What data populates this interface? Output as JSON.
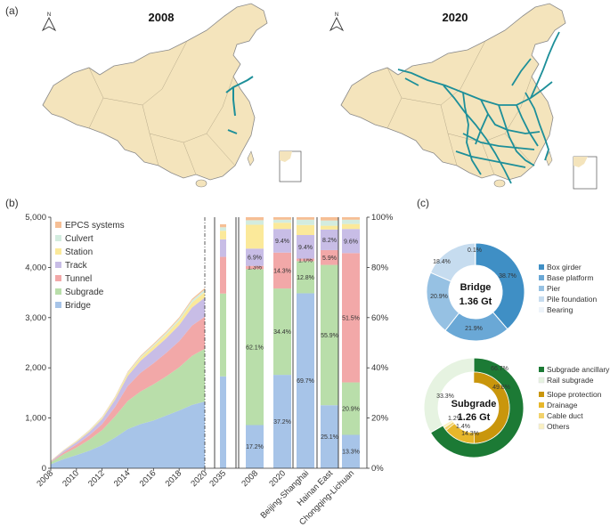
{
  "panel_labels": {
    "a": "(a)",
    "b": "(b)",
    "c": "(c)"
  },
  "maps": [
    {
      "title": "2008",
      "north": "N"
    },
    {
      "title": "2020",
      "north": "N"
    }
  ],
  "colors": {
    "land": "#f4e4bc",
    "border": "#9a9a9a",
    "rail": "#1d8f99",
    "bridge": "#a7c4e8",
    "subgrade": "#b9deaa",
    "tunnel": "#f2a8a8",
    "track": "#c8bde6",
    "station": "#fbe99a",
    "culvert": "#d3ecdf",
    "epcs": "#f6bf95"
  },
  "chart_data": [
    {
      "type": "area",
      "id": "cumulative-stacked-area",
      "x": [
        2008,
        2009,
        2010,
        2011,
        2012,
        2013,
        2014,
        2015,
        2016,
        2017,
        2018,
        2019,
        2020
      ],
      "xticks": [
        "2008",
        "2010",
        "2012",
        "2014",
        "2016",
        "2018",
        "2020"
      ],
      "extra_xtick": "2035",
      "ylim": [
        0,
        5000
      ],
      "yticks_left": [
        "0",
        "1,000",
        "2,000",
        "3,000",
        "4,000",
        "5,000"
      ],
      "yticks_right": [
        "0%",
        "20%",
        "40%",
        "60%",
        "80%",
        "100%"
      ],
      "legend": [
        "EPCS systems",
        "Culvert",
        "Station",
        "Track",
        "Tunnel",
        "Subgrade",
        "Bridge"
      ],
      "series": [
        {
          "name": "Bridge",
          "values": [
            80,
            180,
            260,
            350,
            460,
            610,
            780,
            880,
            950,
            1050,
            1150,
            1260,
            1330
          ]
        },
        {
          "name": "Subgrade",
          "values": [
            40,
            100,
            150,
            220,
            300,
            420,
            560,
            650,
            720,
            780,
            860,
            980,
            1050
          ]
        },
        {
          "name": "Tunnel",
          "values": [
            10,
            35,
            60,
            85,
            120,
            190,
            300,
            370,
            420,
            470,
            520,
            600,
            640
          ]
        },
        {
          "name": "Track",
          "values": [
            10,
            30,
            50,
            70,
            100,
            140,
            200,
            240,
            270,
            290,
            320,
            360,
            380
          ]
        },
        {
          "name": "Station",
          "values": [
            5,
            10,
            15,
            20,
            25,
            35,
            50,
            60,
            70,
            80,
            90,
            100,
            110
          ]
        },
        {
          "name": "Culvert",
          "values": [
            3,
            5,
            8,
            10,
            12,
            15,
            20,
            25,
            30,
            35,
            40,
            45,
            50
          ]
        },
        {
          "name": "EPCS systems",
          "values": [
            2,
            3,
            5,
            8,
            10,
            12,
            15,
            18,
            20,
            22,
            25,
            28,
            30
          ]
        }
      ]
    },
    {
      "type": "bar",
      "id": "projection-2035",
      "categories": [
        "2035"
      ],
      "series": [
        {
          "name": "Bridge",
          "values": [
            1830
          ]
        },
        {
          "name": "Subgrade",
          "values": [
            1650
          ]
        },
        {
          "name": "Tunnel",
          "values": [
            730
          ]
        },
        {
          "name": "Track",
          "values": [
            350
          ]
        },
        {
          "name": "Station",
          "values": [
            170
          ]
        },
        {
          "name": "Culvert",
          "values": [
            70
          ]
        },
        {
          "name": "EPCS systems",
          "values": [
            60
          ]
        }
      ]
    },
    {
      "type": "bar",
      "id": "share-stacked-100",
      "categories": [
        "2008",
        "2020",
        "Beijing-Shanghai",
        "Hainan East",
        "Chongqing-Lichuan"
      ],
      "ylim": [
        0,
        100
      ],
      "series": [
        {
          "name": "Bridge",
          "values": [
            17.2,
            37.2,
            69.7,
            25.1,
            13.3
          ],
          "labels": [
            "17.2%",
            "37.2%",
            "69.7%",
            "25.1%",
            "13.3%"
          ]
        },
        {
          "name": "Subgrade",
          "values": [
            62.1,
            34.4,
            12.8,
            55.9,
            20.9
          ],
          "labels": [
            "62.1%",
            "34.4%",
            "12.8%",
            "55.9%",
            "20.9%"
          ]
        },
        {
          "name": "Tunnel",
          "values": [
            1.3,
            14.3,
            1.0,
            5.9,
            51.5
          ],
          "labels": [
            "1.3%",
            "14.3%",
            "1.0%",
            "5.9%",
            "51.5%"
          ]
        },
        {
          "name": "Track",
          "values": [
            6.9,
            9.4,
            9.4,
            8.2,
            9.6
          ],
          "labels": [
            "6.9%",
            "9.4%",
            "9.4%",
            "8.2%",
            "9.6%"
          ]
        },
        {
          "name": "Station",
          "values": [
            9.5,
            2.5,
            4.0,
            1.5,
            2.0
          ],
          "labels": [
            "",
            "",
            "",
            "",
            ""
          ]
        },
        {
          "name": "Culvert",
          "values": [
            1.8,
            1.2,
            2.1,
            2.1,
            1.7
          ],
          "labels": [
            "",
            "",
            "",
            "",
            ""
          ]
        },
        {
          "name": "EPCS systems",
          "values": [
            1.2,
            1.0,
            1.0,
            1.3,
            1.0
          ],
          "labels": [
            "",
            "",
            "",
            "",
            ""
          ]
        }
      ]
    },
    {
      "type": "pie",
      "id": "bridge-donut",
      "center_title": "Bridge",
      "center_value": "1.36 Gt",
      "slices": [
        {
          "name": "Box girder",
          "value": 38.7,
          "label": "38.7%",
          "color": "#3f8fc5"
        },
        {
          "name": "Base platform",
          "value": 21.9,
          "label": "21.9%",
          "color": "#6aa8d6"
        },
        {
          "name": "Pier",
          "value": 20.9,
          "label": "20.9%",
          "color": "#96c1e3"
        },
        {
          "name": "Pile foundation",
          "value": 18.4,
          "label": "18.4%",
          "color": "#c6dcef"
        },
        {
          "name": "Bearing",
          "value": 0.1,
          "label": "0.1%",
          "color": "#eef4fa"
        }
      ]
    },
    {
      "type": "pie",
      "id": "subgrade-donut",
      "center_title": "Subgrade",
      "center_value": "1.26 Gt",
      "outer_ring": [
        {
          "name": "Subgrade ancillary",
          "value": 66.7,
          "label": "66.7%",
          "color": "#1c7a35"
        },
        {
          "name": "Rail subgrade",
          "value": 33.3,
          "label": "33.3%",
          "color": "#e6f3e1"
        }
      ],
      "inner_ring": [
        {
          "name": "Slope protection",
          "value": 49.8,
          "label": "49.8%",
          "color": "#c9960c"
        },
        {
          "name": "Drainage",
          "value": 14.3,
          "label": "14.3%",
          "color": "#e7b72b"
        },
        {
          "name": "Cable duct",
          "value": 1.4,
          "label": "1.4%",
          "color": "#f2d26c"
        },
        {
          "name": "Others",
          "value": 1.2,
          "label": "1.2%",
          "color": "#faf0c2"
        }
      ],
      "legend": [
        "Subgrade ancillary",
        "Rail subgrade",
        "Slope protection",
        "Drainage",
        "Cable duct",
        "Others"
      ],
      "legend_colors": [
        "#1c7a35",
        "#e6f3e1",
        "#c9960c",
        "#e7b72b",
        "#f2d26c",
        "#faf0c2"
      ]
    }
  ]
}
